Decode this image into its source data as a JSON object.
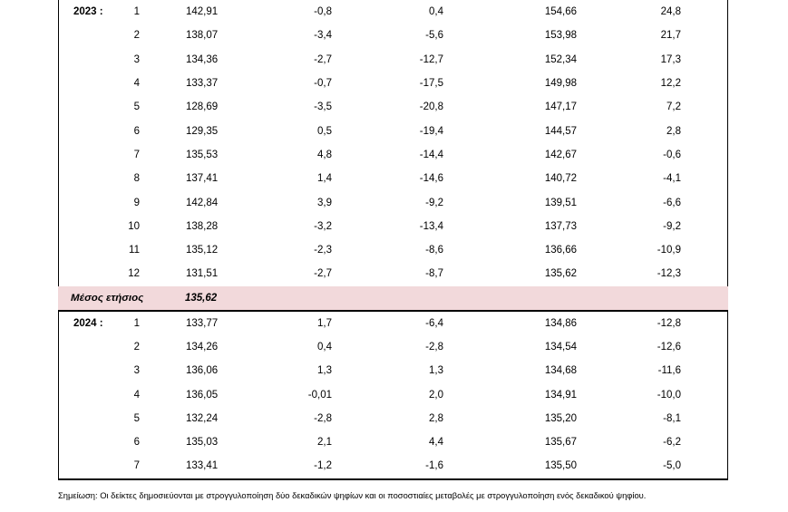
{
  "sections": [
    {
      "year": "2023 :",
      "rows": [
        {
          "month": "1",
          "index": "142,91",
          "mom": "-0,8",
          "yoy": "0,4",
          "avg12": "154,66",
          "avg12_change": "24,8"
        },
        {
          "month": "2",
          "index": "138,07",
          "mom": "-3,4",
          "yoy": "-5,6",
          "avg12": "153,98",
          "avg12_change": "21,7"
        },
        {
          "month": "3",
          "index": "134,36",
          "mom": "-2,7",
          "yoy": "-12,7",
          "avg12": "152,34",
          "avg12_change": "17,3"
        },
        {
          "month": "4",
          "index": "133,37",
          "mom": "-0,7",
          "yoy": "-17,5",
          "avg12": "149,98",
          "avg12_change": "12,2"
        },
        {
          "month": "5",
          "index": "128,69",
          "mom": "-3,5",
          "yoy": "-20,8",
          "avg12": "147,17",
          "avg12_change": "7,2"
        },
        {
          "month": "6",
          "index": "129,35",
          "mom": "0,5",
          "yoy": "-19,4",
          "avg12": "144,57",
          "avg12_change": "2,8"
        },
        {
          "month": "7",
          "index": "135,53",
          "mom": "4,8",
          "yoy": "-14,4",
          "avg12": "142,67",
          "avg12_change": "-0,6"
        },
        {
          "month": "8",
          "index": "137,41",
          "mom": "1,4",
          "yoy": "-14,6",
          "avg12": "140,72",
          "avg12_change": "-4,1"
        },
        {
          "month": "9",
          "index": "142,84",
          "mom": "3,9",
          "yoy": "-9,2",
          "avg12": "139,51",
          "avg12_change": "-6,6"
        },
        {
          "month": "10",
          "index": "138,28",
          "mom": "-3,2",
          "yoy": "-13,4",
          "avg12": "137,73",
          "avg12_change": "-9,2"
        },
        {
          "month": "11",
          "index": "135,12",
          "mom": "-2,3",
          "yoy": "-8,6",
          "avg12": "136,66",
          "avg12_change": "-10,9"
        },
        {
          "month": "12",
          "index": "131,51",
          "mom": "-2,7",
          "yoy": "-8,7",
          "avg12": "135,62",
          "avg12_change": "-12,3"
        }
      ],
      "annual_average": {
        "label": "Μέσος ετήσιος",
        "value": "135,62"
      }
    },
    {
      "year": "2024 :",
      "rows": [
        {
          "month": "1",
          "index": "133,77",
          "mom": "1,7",
          "yoy": "-6,4",
          "avg12": "134,86",
          "avg12_change": "-12,8"
        },
        {
          "month": "2",
          "index": "134,26",
          "mom": "0,4",
          "yoy": "-2,8",
          "avg12": "134,54",
          "avg12_change": "-12,6"
        },
        {
          "month": "3",
          "index": "136,06",
          "mom": "1,3",
          "yoy": "1,3",
          "avg12": "134,68",
          "avg12_change": "-11,6"
        },
        {
          "month": "4",
          "index": "136,05",
          "mom": "-0,01",
          "yoy": "2,0",
          "avg12": "134,91",
          "avg12_change": "-10,0"
        },
        {
          "month": "5",
          "index": "132,24",
          "mom": "-2,8",
          "yoy": "2,8",
          "avg12": "135,20",
          "avg12_change": "-8,1"
        },
        {
          "month": "6",
          "index": "135,03",
          "mom": "2,1",
          "yoy": "4,4",
          "avg12": "135,67",
          "avg12_change": "-6,2"
        },
        {
          "month": "7",
          "index": "133,41",
          "mom": "-1,2",
          "yoy": "-1,6",
          "avg12": "135,50",
          "avg12_change": "-5,0"
        }
      ]
    }
  ],
  "note": "Σημείωση: Οι δείκτες δημοσιεύονται με στρογγυλοποίηση δύο δεκαδικών ψηφίων και οι ποσοστιαίες μεταβολές με στρογγυλοποίηση ενός δεκαδικού ψηφίου."
}
